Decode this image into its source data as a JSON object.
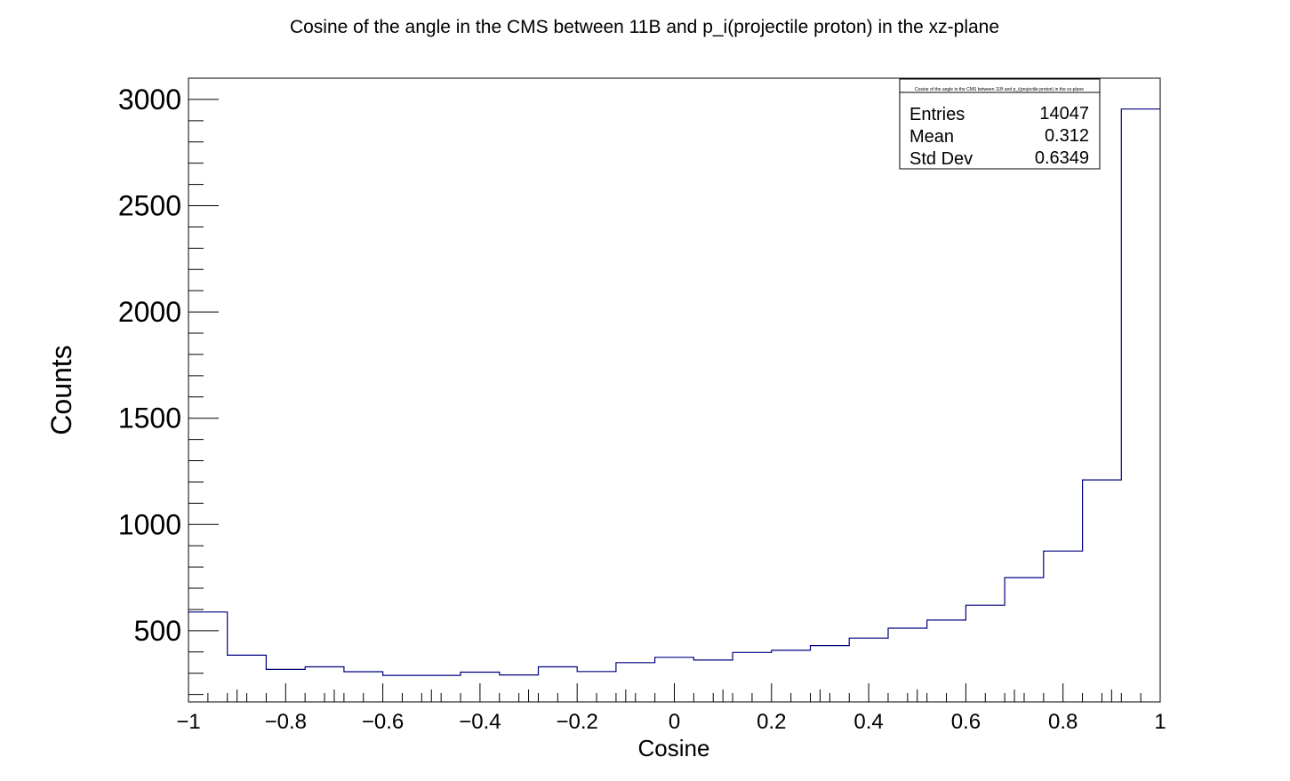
{
  "chart_data": {
    "type": "bar",
    "title": "Cosine of the angle in the CMS between 11B and p_i(projectile proton) in the xz-plane",
    "xlabel": "Cosine",
    "ylabel": "Counts",
    "xlim": [
      -1,
      1
    ],
    "ylim": [
      165,
      3100
    ],
    "bin_edges": [
      -1,
      -0.92,
      -0.84,
      -0.76,
      -0.68,
      -0.6,
      -0.52,
      -0.44,
      -0.36,
      -0.28,
      -0.2,
      -0.12,
      -0.04,
      0.04,
      0.12,
      0.2,
      0.28,
      0.36,
      0.44,
      0.52,
      0.6,
      0.68,
      0.76,
      0.84,
      0.92,
      1.0
    ],
    "values": [
      588,
      385,
      318,
      330,
      307,
      290,
      290,
      305,
      292,
      330,
      308,
      350,
      375,
      362,
      398,
      408,
      430,
      465,
      512,
      550,
      620,
      750,
      875,
      1210,
      2955
    ],
    "xticks": [
      -1,
      -0.8,
      -0.6,
      -0.4,
      -0.2,
      0,
      0.2,
      0.4,
      0.6,
      0.8,
      1
    ],
    "xtick_labels": [
      "−1",
      "−0.8",
      "−0.6",
      "−0.4",
      "−0.2",
      "0",
      "0.2",
      "0.4",
      "0.6",
      "0.8",
      "1"
    ],
    "yticks": [
      500,
      1000,
      1500,
      2000,
      2500,
      3000
    ],
    "ytick_labels": [
      "500",
      "1000",
      "1500",
      "2000",
      "2500",
      "3000"
    ],
    "line_color": "#000080",
    "grid": false,
    "legend": "none"
  },
  "stats_box": {
    "title": "Cosine of the angle in the CMS between 11B and p_i(projectile proton) in the xz-plane",
    "rows": [
      {
        "label": "Entries",
        "value": "14047"
      },
      {
        "label": "Mean",
        "value": "0.312"
      },
      {
        "label": "Std Dev",
        "value": "0.6349"
      }
    ]
  }
}
